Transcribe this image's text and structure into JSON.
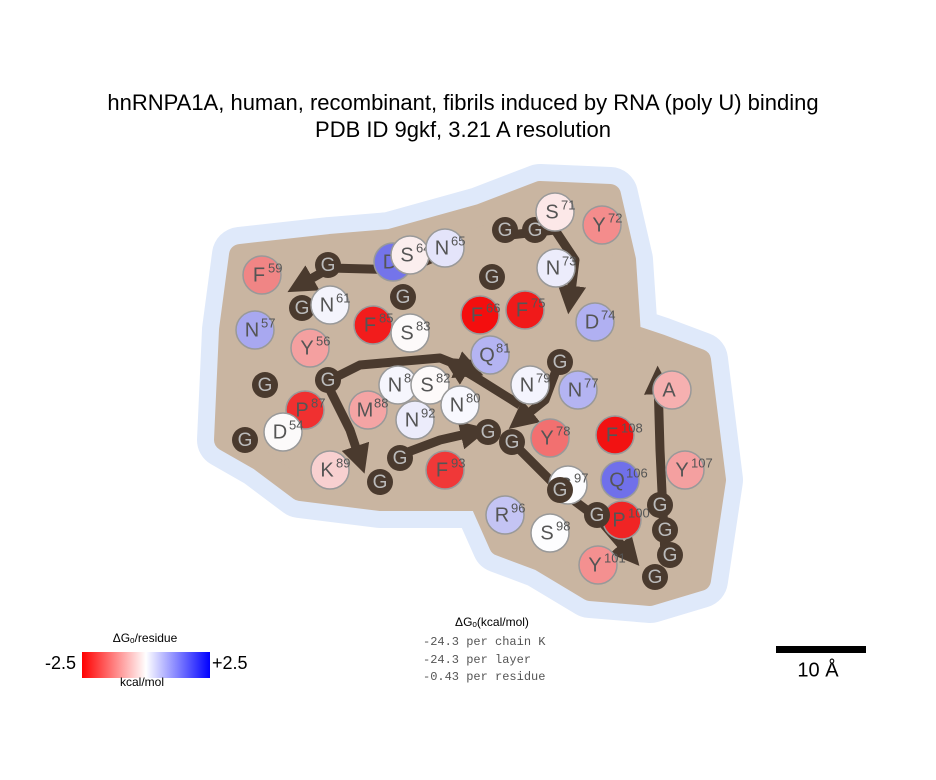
{
  "title": [
    "hnRNPA1A, human, recombinant, fibrils induced by RNA (poly U) binding",
    "PDB ID 9gkf, 3.21 A resolution"
  ],
  "residues": [
    {
      "letter": "F",
      "number": "59",
      "color": "#f08585"
    },
    {
      "letter": "G",
      "color": "#4a3a2e"
    },
    {
      "letter": "D",
      "number": "62",
      "color": "#7474ea"
    },
    {
      "letter": "S",
      "number": "64",
      "color": "#fbeeee"
    },
    {
      "letter": "N",
      "number": "65",
      "color": "#e4e4fa"
    },
    {
      "letter": "G",
      "color": "#4a3a2e"
    },
    {
      "letter": "N",
      "number": "61",
      "color": "#f4f4fc"
    },
    {
      "letter": "G",
      "color": "#4a3a2e"
    },
    {
      "letter": "F",
      "number": "85",
      "color": "#f21c1c"
    },
    {
      "letter": "N",
      "number": "57",
      "color": "#a8a8f0"
    },
    {
      "letter": "Y",
      "number": "56",
      "color": "#f4a0a0"
    },
    {
      "letter": "S",
      "number": "83",
      "color": "#fdfafa"
    },
    {
      "letter": "G",
      "color": "#4a3a2e"
    },
    {
      "letter": "G",
      "color": "#4a3a2e"
    },
    {
      "letter": "N",
      "number": "84",
      "color": "#f6f6fd"
    },
    {
      "letter": "S",
      "number": "82",
      "color": "#fdfafa"
    },
    {
      "letter": "N",
      "number": "80",
      "color": "#f8f8fe"
    },
    {
      "letter": "P",
      "number": "87",
      "color": "#f03030"
    },
    {
      "letter": "M",
      "number": "88",
      "color": "#f4a4a4"
    },
    {
      "letter": "N",
      "number": "92",
      "color": "#ececfb"
    },
    {
      "letter": "G",
      "color": "#4a3a2e"
    },
    {
      "letter": "D",
      "number": "54",
      "color": "#fcfafa"
    },
    {
      "letter": "K",
      "number": "89",
      "color": "#f8d0d0"
    },
    {
      "letter": "G",
      "color": "#4a3a2e"
    },
    {
      "letter": "G",
      "color": "#4a3a2e"
    },
    {
      "letter": "F",
      "number": "93",
      "color": "#f03838"
    },
    {
      "letter": "G",
      "color": "#4a3a2e"
    },
    {
      "letter": "G",
      "color": "#4a3a2e"
    },
    {
      "letter": "G",
      "color": "#4a3a2e"
    },
    {
      "letter": "G",
      "color": "#4a3a2e"
    },
    {
      "letter": "S",
      "number": "71",
      "color": "#fce8e8"
    },
    {
      "letter": "Y",
      "number": "72",
      "color": "#f48c8c"
    },
    {
      "letter": "G",
      "color": "#4a3a2e"
    },
    {
      "letter": "N",
      "number": "73",
      "color": "#ececfb"
    },
    {
      "letter": "F",
      "number": "66",
      "color": "#f40e0e"
    },
    {
      "letter": "F",
      "number": "75",
      "color": "#f01a1a"
    },
    {
      "letter": "D",
      "number": "74",
      "color": "#b0b0f2"
    },
    {
      "letter": "Q",
      "number": "81",
      "color": "#b4b4f2"
    },
    {
      "letter": "N",
      "number": "79",
      "color": "#f4f4fd"
    },
    {
      "letter": "G",
      "color": "#4a3a2e"
    },
    {
      "letter": "N",
      "number": "77",
      "color": "#b4b4f2"
    },
    {
      "letter": "Y",
      "number": "78",
      "color": "#f27070"
    },
    {
      "letter": "F",
      "number": "108",
      "color": "#f21212"
    },
    {
      "letter": "A",
      "color": "#f6b0b0"
    },
    {
      "letter": "Y",
      "number": "107",
      "color": "#f4a0a0"
    },
    {
      "letter": "Q",
      "number": "106",
      "color": "#7070ea"
    },
    {
      "letter": "S",
      "number": "97",
      "color": "#fcfcfe"
    },
    {
      "letter": "R",
      "number": "96",
      "color": "#c4c4f4"
    },
    {
      "letter": "G",
      "color": "#4a3a2e"
    },
    {
      "letter": "P",
      "number": "100",
      "color": "#f02424"
    },
    {
      "letter": "G",
      "color": "#4a3a2e"
    },
    {
      "letter": "S",
      "number": "98",
      "color": "#fdfdfe"
    },
    {
      "letter": "G",
      "color": "#4a3a2e"
    },
    {
      "letter": "G",
      "color": "#4a3a2e"
    },
    {
      "letter": "G",
      "color": "#4a3a2e"
    },
    {
      "letter": "Y",
      "number": "101",
      "color": "#f49090"
    },
    {
      "letter": "G",
      "color": "#4a3a2e"
    }
  ],
  "legend": {
    "title": "ΔGₒ/residue",
    "min": "-2.5",
    "max": "+2.5",
    "unit": "kcal/mol"
  },
  "stats": {
    "title": "ΔGₒ(kcal/mol)",
    "lines": [
      "-24.3 per chain K",
      "-24.3 per layer",
      "-0.43 per residue"
    ]
  },
  "scale_bar": "10 Å"
}
